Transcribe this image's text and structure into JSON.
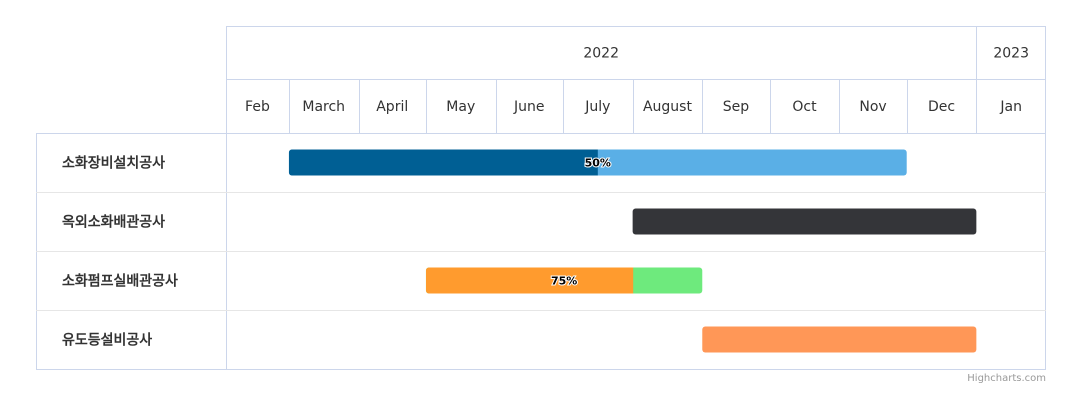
{
  "chart_data": {
    "type": "gantt",
    "year_headers": [
      {
        "label": "2022",
        "start": "2022-02",
        "end": "2022-12"
      },
      {
        "label": "2023",
        "start": "2023-01",
        "end": "2023-01"
      }
    ],
    "months": [
      "Feb",
      "March",
      "April",
      "May",
      "June",
      "July",
      "August",
      "Sep",
      "Oct",
      "Nov",
      "Dec",
      "Jan"
    ],
    "tasks": [
      {
        "name": "소화장비설치공사",
        "start": "2022-03-01",
        "end": "2022-11-30",
        "completed": 0.5,
        "completed_label": "50%",
        "color": "#5aafe6",
        "completed_color": "#005f94"
      },
      {
        "name": "옥외소화배관공사",
        "start": "2022-08-01",
        "end": "2022-12-31",
        "completed": null,
        "completed_label": "",
        "color": "#343539",
        "completed_color": null
      },
      {
        "name": "소화펌프실배관공사",
        "start": "2022-05-01",
        "end": "2022-08-31",
        "completed": 0.75,
        "completed_label": "75%",
        "color": "#6eea7d",
        "completed_color": "#ff9b2e"
      },
      {
        "name": "유도등설비공사",
        "start": "2022-09-01",
        "end": "2022-12-31",
        "completed": null,
        "completed_label": "",
        "color": "#ff9757",
        "completed_color": null
      }
    ],
    "credits": "Highcharts.com"
  }
}
